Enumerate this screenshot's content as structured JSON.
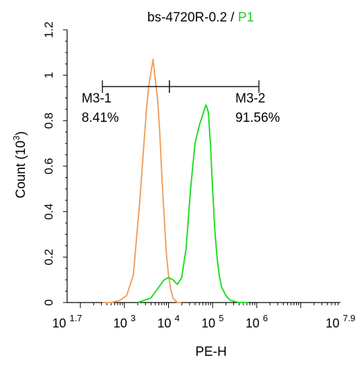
{
  "chart_data": {
    "type": "line",
    "title": {
      "main": "bs-4720R-0.2",
      "separator": " / ",
      "gate": "P1",
      "gate_color": "#22cc22"
    },
    "xlabel": "PE-H",
    "ylabel": "Count  (10",
    "ylabel_exp": "3",
    "ylabel_close": ")",
    "x_scale": "log10",
    "xlim_log10": [
      1.7,
      7.9
    ],
    "ylim": [
      0,
      1.2
    ],
    "x_ticks": [
      {
        "base": "10",
        "exp": "1.7",
        "log": 1.7
      },
      {
        "base": "10",
        "exp": "3",
        "log": 3
      },
      {
        "base": "10",
        "exp": "4",
        "log": 4
      },
      {
        "base": "10",
        "exp": "5",
        "log": 5
      },
      {
        "base": "10",
        "exp": "6",
        "log": 6
      },
      {
        "base": "10",
        "exp": "7.9",
        "log": 7.9
      }
    ],
    "y_ticks": [
      {
        "label": "0",
        "value": 0
      },
      {
        "label": "0.2",
        "value": 0.2
      },
      {
        "label": "0.4",
        "value": 0.4
      },
      {
        "label": "0.6",
        "value": 0.6
      },
      {
        "label": "0.8",
        "value": 0.8
      },
      {
        "label": "1",
        "value": 1.0
      },
      {
        "label": "1.2",
        "value": 1.2
      }
    ],
    "series": [
      {
        "color": "#f0a060",
        "x_log10": [
          2.5,
          2.7,
          2.9,
          3.05,
          3.2,
          3.35,
          3.45,
          3.5,
          3.55,
          3.6,
          3.65,
          3.7,
          3.75,
          3.8,
          3.85,
          3.9,
          3.95,
          4.0,
          4.05,
          4.1,
          4.2,
          4.3
        ],
        "y": [
          0.0,
          0.0,
          0.01,
          0.03,
          0.12,
          0.45,
          0.72,
          0.85,
          0.95,
          1.01,
          1.07,
          0.98,
          0.9,
          0.75,
          0.55,
          0.38,
          0.22,
          0.12,
          0.06,
          0.02,
          0.0,
          0.0
        ]
      },
      {
        "color": "#22dd22",
        "x_log10": [
          3.3,
          3.6,
          3.75,
          3.9,
          4.0,
          4.1,
          4.2,
          4.3,
          4.4,
          4.5,
          4.6,
          4.7,
          4.8,
          4.85,
          4.9,
          4.95,
          5.0,
          5.05,
          5.1,
          5.15,
          5.2,
          5.3,
          5.4,
          5.5,
          5.6,
          5.8
        ],
        "y": [
          0.0,
          0.02,
          0.06,
          0.1,
          0.11,
          0.1,
          0.08,
          0.11,
          0.24,
          0.5,
          0.7,
          0.78,
          0.84,
          0.87,
          0.84,
          0.7,
          0.5,
          0.32,
          0.2,
          0.12,
          0.07,
          0.03,
          0.01,
          0.005,
          0.0,
          0.0
        ]
      }
    ],
    "gates": [
      {
        "name": "M3-1",
        "pct": "8.41%",
        "x_start_log10": 2.5,
        "x_end_log10": 4.02
      },
      {
        "name": "M3-2",
        "pct": "91.56%",
        "x_start_log10": 4.02,
        "x_end_log10": 6.05
      }
    ],
    "gate_marker_y": 0.95,
    "grid": false,
    "legend": "none"
  }
}
